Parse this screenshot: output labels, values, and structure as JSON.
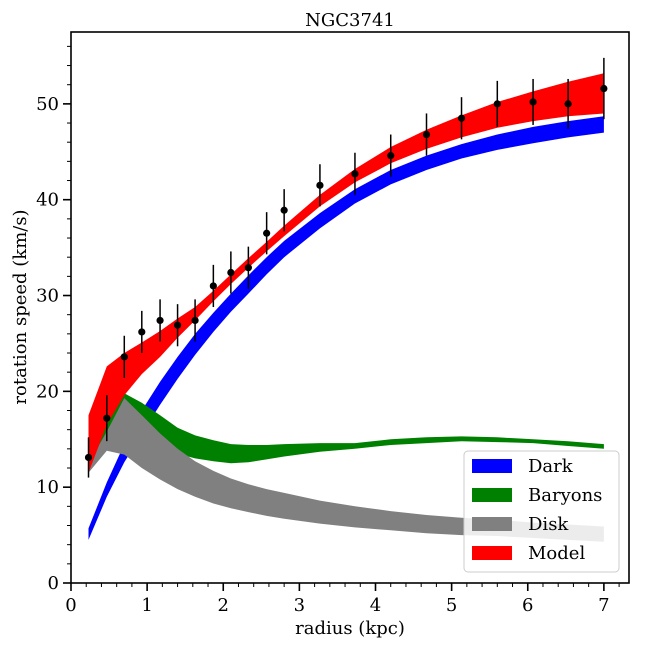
{
  "chart_data": {
    "type": "area",
    "title": "NGC3741",
    "xlabel": "radius (kpc)",
    "ylabel": "rotation speed (km/s)",
    "xlim": [
      0,
      7.33
    ],
    "ylim": [
      0,
      57.5
    ],
    "xticks": [
      0,
      1,
      2,
      3,
      4,
      5,
      6,
      7
    ],
    "yticks": [
      0,
      10,
      20,
      30,
      40,
      50
    ],
    "x": [
      0.23,
      0.47,
      0.7,
      0.93,
      1.17,
      1.4,
      1.63,
      1.87,
      2.1,
      2.33,
      2.57,
      2.8,
      3.27,
      3.73,
      4.2,
      4.67,
      5.13,
      5.6,
      6.07,
      6.53,
      7.0
    ],
    "series": [
      {
        "name": "Dark",
        "color": "#0000ff",
        "lower": [
          4.5,
          9.0,
          12.6,
          15.6,
          18.6,
          21.3,
          23.8,
          26.2,
          28.3,
          30.2,
          32.2,
          34.0,
          37.0,
          39.6,
          41.6,
          43.1,
          44.3,
          45.2,
          45.9,
          46.5,
          47.0
        ],
        "upper": [
          5.7,
          10.5,
          14.5,
          18.0,
          21.0,
          23.6,
          26.0,
          28.2,
          30.2,
          32.1,
          34.0,
          35.7,
          38.6,
          41.1,
          43.1,
          44.6,
          45.8,
          46.8,
          47.6,
          48.2,
          48.7
        ]
      },
      {
        "name": "Baryons",
        "color": "#008000",
        "lower": [
          12.0,
          15.5,
          18.5,
          16.5,
          14.6,
          13.5,
          13.0,
          12.7,
          12.5,
          12.6,
          12.9,
          13.2,
          13.7,
          14.0,
          14.4,
          14.6,
          14.8,
          14.7,
          14.6,
          14.3,
          14.0
        ],
        "upper": [
          13.5,
          17.5,
          19.8,
          18.8,
          17.5,
          16.2,
          15.4,
          14.9,
          14.5,
          14.4,
          14.4,
          14.5,
          14.6,
          14.6,
          15.0,
          15.2,
          15.3,
          15.2,
          15.0,
          14.8,
          14.5
        ]
      },
      {
        "name": "Disk",
        "color": "#808080",
        "lower": [
          11.5,
          13.8,
          13.4,
          12.0,
          10.8,
          9.8,
          9.0,
          8.3,
          7.8,
          7.4,
          7.0,
          6.7,
          6.2,
          5.8,
          5.5,
          5.2,
          5.0,
          4.9,
          4.7,
          4.5,
          4.3
        ],
        "upper": [
          12.5,
          15.8,
          19.3,
          17.5,
          15.6,
          14.0,
          12.7,
          11.7,
          10.9,
          10.3,
          9.8,
          9.4,
          8.6,
          8.0,
          7.5,
          7.1,
          6.8,
          6.6,
          6.3,
          6.1,
          5.9
        ]
      },
      {
        "name": "Model",
        "color": "#ff0000",
        "lower": [
          11.5,
          16.5,
          19.6,
          21.8,
          23.6,
          25.6,
          27.4,
          29.4,
          31.2,
          32.9,
          34.6,
          36.2,
          39.3,
          41.8,
          43.8,
          45.3,
          46.5,
          47.5,
          48.2,
          48.7,
          49.0
        ],
        "upper": [
          17.5,
          22.6,
          24.0,
          25.1,
          26.3,
          27.6,
          28.8,
          30.5,
          32.2,
          33.9,
          35.6,
          37.3,
          40.5,
          43.2,
          45.5,
          47.3,
          48.8,
          50.2,
          51.3,
          52.3,
          53.2
        ]
      }
    ],
    "observed": {
      "name": "Data",
      "color": "#000000",
      "x": [
        0.23,
        0.47,
        0.7,
        0.93,
        1.17,
        1.4,
        1.63,
        1.87,
        2.1,
        2.33,
        2.57,
        2.8,
        3.27,
        3.73,
        4.2,
        4.67,
        5.13,
        5.6,
        6.07,
        6.53,
        7.0
      ],
      "y": [
        13.1,
        17.2,
        23.6,
        26.2,
        27.4,
        26.9,
        27.4,
        31.0,
        32.4,
        32.9,
        36.5,
        38.9,
        41.5,
        42.7,
        44.6,
        46.8,
        48.5,
        50.0,
        50.2,
        50.0,
        51.6
      ],
      "err": [
        2.1,
        2.4,
        2.2,
        2.2,
        2.2,
        2.2,
        2.2,
        2.2,
        2.2,
        2.2,
        2.2,
        2.2,
        2.2,
        2.2,
        2.2,
        2.2,
        2.2,
        2.4,
        2.4,
        2.6,
        3.2
      ]
    },
    "legend": {
      "position": "lower-right",
      "entries": [
        "Dark",
        "Baryons",
        "Disk",
        "Model"
      ]
    }
  }
}
